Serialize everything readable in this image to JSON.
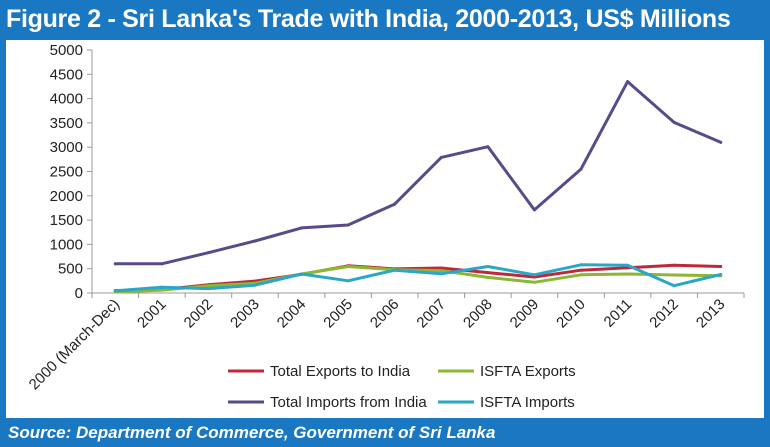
{
  "header": {
    "title": "Figure 2 - Sri Lanka's Trade with India, 2000-2013, US$ Millions"
  },
  "footer": {
    "source": "Source: Department of Commerce, Government of Sri Lanka"
  },
  "colors": {
    "frame": "#1a78c2",
    "exports_total": "#c0283a",
    "imports_total": "#5a4a8a",
    "isfta_exports": "#8ab832",
    "isfta_imports": "#2aa6c8",
    "axis": "#999999"
  },
  "chart_data": {
    "type": "line",
    "title": "Figure 2 - Sri Lanka's Trade with India, 2000-2013, US$ Millions",
    "xlabel": "",
    "ylabel": "",
    "ylim": [
      0,
      5000
    ],
    "yticks": [
      0,
      500,
      1000,
      1500,
      2000,
      2500,
      3000,
      3500,
      4000,
      4500,
      5000
    ],
    "grid": false,
    "legend_position": "bottom",
    "categories": [
      "2000 (March-Dec)",
      "2001",
      "2002",
      "2003",
      "2004",
      "2005",
      "2006",
      "2007",
      "2008",
      "2009",
      "2010",
      "2011",
      "2012",
      "2013"
    ],
    "series": [
      {
        "name": "Total Exports to India",
        "color": "#c0283a",
        "values": [
          50,
          70,
          170,
          245,
          385,
          560,
          495,
          515,
          420,
          330,
          470,
          520,
          570,
          545
        ]
      },
      {
        "name": "ISFTA Exports",
        "color": "#8ab832",
        "values": [
          20,
          60,
          150,
          200,
          390,
          545,
          480,
          460,
          320,
          220,
          375,
          390,
          370,
          355
        ]
      },
      {
        "name": "Total Imports from India",
        "color": "#5a4a8a",
        "values": [
          600,
          600,
          830,
          1070,
          1340,
          1400,
          1830,
          2790,
          3010,
          1710,
          2550,
          4350,
          3510,
          3100
        ]
      },
      {
        "name": "ISFTA Imports",
        "color": "#2aa6c8",
        "values": [
          45,
          120,
          90,
          160,
          390,
          250,
          470,
          395,
          545,
          375,
          580,
          570,
          150,
          380
        ]
      }
    ]
  }
}
